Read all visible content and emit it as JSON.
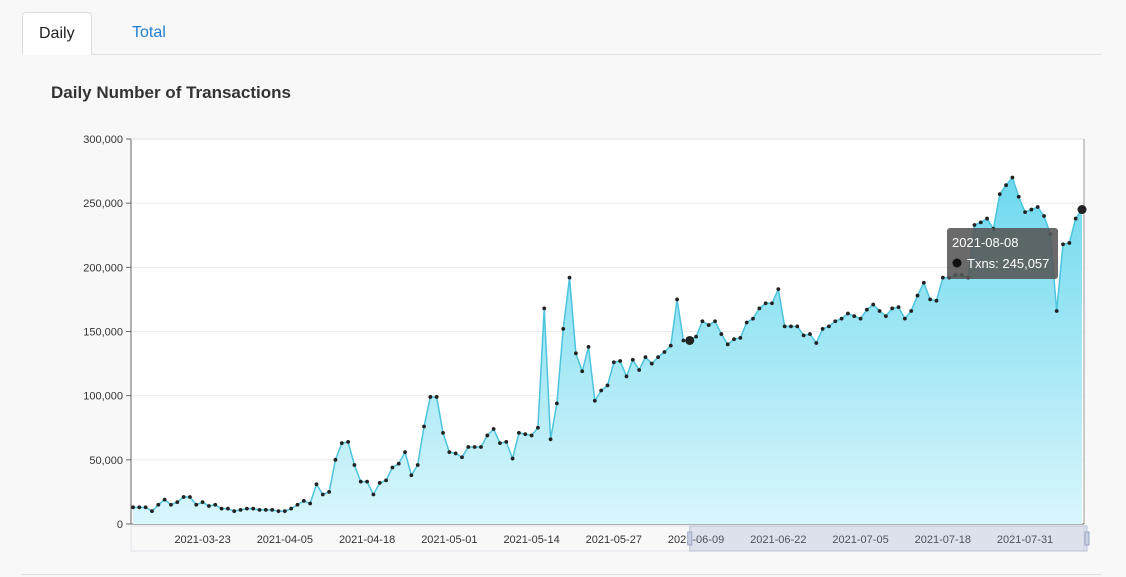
{
  "tabs": {
    "daily_label": "Daily",
    "total_label": "Total"
  },
  "colors": {
    "area_top": "#6fd9ee",
    "area_bottom": "#d9f6fc",
    "line": "#4cc4dd",
    "point": "#222222",
    "tab_link": "#1f7fd2"
  },
  "chart_data": {
    "type": "area",
    "title": "Daily Number of Transactions",
    "xlabel": "",
    "ylabel": "",
    "ylim": [
      0,
      300000
    ],
    "yticks": [
      "0",
      "50,000",
      "100,000",
      "150,000",
      "200,000",
      "250,000",
      "300,000"
    ],
    "xticks": [
      "2021-03-23",
      "2021-04-05",
      "2021-04-18",
      "2021-05-01",
      "2021-05-14",
      "2021-05-27",
      "2021-06-09",
      "2021-06-22",
      "2021-07-05",
      "2021-07-18",
      "2021-07-31"
    ],
    "x_start": "2021-03-12",
    "x_end": "2021-08-08",
    "grid": true,
    "tooltip": {
      "date": "2021-08-08",
      "series": "Txns",
      "value": "245,057"
    },
    "values": [
      13000,
      13000,
      13000,
      10000,
      15000,
      19000,
      15000,
      17000,
      21000,
      21000,
      15000,
      17000,
      14000,
      15000,
      12000,
      12000,
      10000,
      11000,
      12000,
      12000,
      11000,
      11000,
      11000,
      10000,
      10000,
      12000,
      15000,
      18000,
      16000,
      31000,
      23000,
      25000,
      50000,
      63000,
      64000,
      46000,
      33000,
      33000,
      23000,
      32000,
      34000,
      44000,
      47000,
      56000,
      38000,
      46000,
      76000,
      99000,
      99000,
      71000,
      56000,
      55000,
      52000,
      60000,
      60000,
      60000,
      69000,
      74000,
      63000,
      64000,
      51000,
      71000,
      70000,
      69000,
      75000,
      168000,
      66000,
      94000,
      152000,
      192000,
      133000,
      119000,
      138000,
      96000,
      104000,
      108000,
      126000,
      127000,
      115000,
      128000,
      120000,
      130000,
      125000,
      130000,
      134000,
      139000,
      175000,
      143000,
      143000,
      146000,
      158000,
      155000,
      158000,
      148000,
      140000,
      144000,
      145000,
      157000,
      160000,
      168000,
      172000,
      172000,
      183000,
      154000,
      154000,
      154000,
      147000,
      148000,
      141000,
      152000,
      154000,
      158000,
      160000,
      164000,
      162000,
      160000,
      167000,
      171000,
      166000,
      162000,
      168000,
      169000,
      160000,
      166000,
      178000,
      188000,
      175000,
      174000,
      192000,
      192000,
      194000,
      194000,
      192000,
      233000,
      235000,
      238000,
      230000,
      257000,
      264000,
      270000,
      255000,
      243000,
      245000,
      247000,
      240000,
      226000,
      166000,
      218000,
      219000,
      238000,
      245057
    ]
  }
}
